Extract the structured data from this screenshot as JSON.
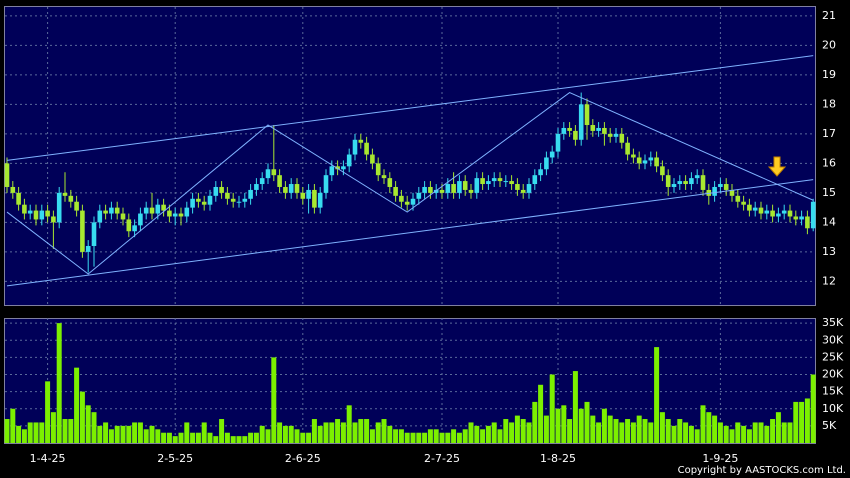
{
  "chart_data": [
    {
      "type": "candlestick",
      "open": [
        16.0,
        15.2,
        15.0,
        14.6,
        14.3,
        14.4,
        14.1,
        14.4,
        14.2,
        14.0,
        15.0,
        14.9,
        14.7,
        14.4,
        13.0,
        13.2,
        14.0,
        14.4,
        14.3,
        14.5,
        14.3,
        14.1,
        13.7,
        13.9,
        14.3,
        14.5,
        14.3,
        14.6,
        14.4,
        14.2,
        14.3,
        14.2,
        14.5,
        14.8,
        14.7,
        14.6,
        14.9,
        15.2,
        15.0,
        14.8,
        14.7,
        14.7,
        14.8,
        15.1,
        15.3,
        15.5,
        15.8,
        15.6,
        15.2,
        15.0,
        15.3,
        15.0,
        14.8,
        15.1,
        14.5,
        15.0,
        15.6,
        15.9,
        15.8,
        15.9,
        16.3,
        16.8,
        16.7,
        16.3,
        16.0,
        15.6,
        15.5,
        15.2,
        14.9,
        14.7,
        14.6,
        14.8,
        15.0,
        15.2,
        15.0,
        15.1,
        15.0,
        15.3,
        15.0,
        15.4,
        15.1,
        15.0,
        15.5,
        15.3,
        15.4,
        15.5,
        15.4,
        15.4,
        15.3,
        15.1,
        15.0,
        15.3,
        15.6,
        15.8,
        16.2,
        16.4,
        17.0,
        17.2,
        17.1,
        16.8,
        18.0,
        17.3,
        17.1,
        17.2,
        17.0,
        16.9,
        17.0,
        16.7,
        16.3,
        16.2,
        16.0,
        16.1,
        16.2,
        15.9,
        15.6,
        15.2,
        15.3,
        15.4,
        15.3,
        15.5,
        15.6,
        15.1,
        14.9,
        15.2,
        15.3,
        15.1,
        14.9,
        14.7,
        14.6,
        14.4,
        14.5,
        14.3,
        14.4,
        14.2,
        14.3,
        14.4,
        14.2,
        14.1,
        14.2,
        13.8
      ],
      "high": [
        16.2,
        15.4,
        15.2,
        14.8,
        14.6,
        14.6,
        14.6,
        14.6,
        14.4,
        15.2,
        15.7,
        15.1,
        14.9,
        14.6,
        13.4,
        14.2,
        14.6,
        14.6,
        14.7,
        14.7,
        14.5,
        14.3,
        14.1,
        14.5,
        14.7,
        15.0,
        14.8,
        14.8,
        14.6,
        14.5,
        14.5,
        14.7,
        15.0,
        15.0,
        14.9,
        15.1,
        15.4,
        15.4,
        15.2,
        15.0,
        14.9,
        15.0,
        15.3,
        15.5,
        15.7,
        16.0,
        17.3,
        15.8,
        15.4,
        15.5,
        15.5,
        15.2,
        15.3,
        15.3,
        15.2,
        15.8,
        16.1,
        16.1,
        16.1,
        16.5,
        17.0,
        17.0,
        16.9,
        16.5,
        16.2,
        15.8,
        15.7,
        15.4,
        15.1,
        14.9,
        15.0,
        15.2,
        15.4,
        15.4,
        15.3,
        15.3,
        15.5,
        15.7,
        15.6,
        15.6,
        15.3,
        15.7,
        15.7,
        15.6,
        15.7,
        15.7,
        15.6,
        15.6,
        15.5,
        15.3,
        15.5,
        15.8,
        16.0,
        16.4,
        16.6,
        17.2,
        17.4,
        17.4,
        17.3,
        18.4,
        18.2,
        17.5,
        17.4,
        17.4,
        17.2,
        17.2,
        17.2,
        16.9,
        16.5,
        16.4,
        16.3,
        16.4,
        16.4,
        16.1,
        15.8,
        15.5,
        15.6,
        15.6,
        15.7,
        15.8,
        15.8,
        15.3,
        15.4,
        15.5,
        15.5,
        15.3,
        15.1,
        14.9,
        14.8,
        14.7,
        14.7,
        14.6,
        14.6,
        14.5,
        14.6,
        14.6,
        14.4,
        14.4,
        14.4,
        14.8
      ],
      "low": [
        15.0,
        14.8,
        14.4,
        14.1,
        14.1,
        13.9,
        13.9,
        14.0,
        13.1,
        13.8,
        14.7,
        14.5,
        14.2,
        12.8,
        12.3,
        12.5,
        13.8,
        14.1,
        14.1,
        14.1,
        13.9,
        13.5,
        13.5,
        13.7,
        14.1,
        14.1,
        14.1,
        14.2,
        14.0,
        13.9,
        13.9,
        14.0,
        14.3,
        14.5,
        14.4,
        14.4,
        14.7,
        14.8,
        14.6,
        14.5,
        14.5,
        14.5,
        14.6,
        14.9,
        15.1,
        15.3,
        15.4,
        15.0,
        14.8,
        14.8,
        14.8,
        14.6,
        14.3,
        14.3,
        14.3,
        14.8,
        15.4,
        15.6,
        15.6,
        15.7,
        16.1,
        16.5,
        16.1,
        15.8,
        15.4,
        15.3,
        15.0,
        14.7,
        14.5,
        14.4,
        14.4,
        14.6,
        14.8,
        14.8,
        14.8,
        14.8,
        14.8,
        14.8,
        14.8,
        14.9,
        14.8,
        14.8,
        15.1,
        15.1,
        15.2,
        15.2,
        15.2,
        15.1,
        14.9,
        14.8,
        14.8,
        15.1,
        15.4,
        15.6,
        16.0,
        16.2,
        16.8,
        16.9,
        16.6,
        16.6,
        16.8,
        16.9,
        16.9,
        16.6,
        16.7,
        16.7,
        16.5,
        16.1,
        16.0,
        15.8,
        15.8,
        15.9,
        15.7,
        15.4,
        14.9,
        15.0,
        15.1,
        15.1,
        15.1,
        15.3,
        14.9,
        14.6,
        14.7,
        15.0,
        14.9,
        14.7,
        14.5,
        14.4,
        14.2,
        14.2,
        14.1,
        14.1,
        14.0,
        14.0,
        14.1,
        14.0,
        13.9,
        13.9,
        13.6,
        13.7
      ],
      "close": [
        15.2,
        15.0,
        14.6,
        14.3,
        14.4,
        14.1,
        14.4,
        14.2,
        14.0,
        15.0,
        14.9,
        14.7,
        14.4,
        13.0,
        13.2,
        14.0,
        14.4,
        14.3,
        14.5,
        14.3,
        14.1,
        13.7,
        13.9,
        14.3,
        14.5,
        14.3,
        14.6,
        14.4,
        14.2,
        14.3,
        14.2,
        14.5,
        14.8,
        14.7,
        14.6,
        14.9,
        15.2,
        15.0,
        14.8,
        14.7,
        14.7,
        14.8,
        15.1,
        15.3,
        15.5,
        15.8,
        15.6,
        15.2,
        15.0,
        15.3,
        15.0,
        14.8,
        15.1,
        14.5,
        15.0,
        15.6,
        15.9,
        15.8,
        15.9,
        16.3,
        16.8,
        16.7,
        16.3,
        16.0,
        15.6,
        15.5,
        15.2,
        14.9,
        14.7,
        14.6,
        14.8,
        15.0,
        15.2,
        15.0,
        15.1,
        15.0,
        15.3,
        15.0,
        15.4,
        15.1,
        15.0,
        15.5,
        15.3,
        15.4,
        15.5,
        15.4,
        15.4,
        15.3,
        15.1,
        15.0,
        15.3,
        15.6,
        15.8,
        16.2,
        16.4,
        17.0,
        17.2,
        17.1,
        16.8,
        18.0,
        17.3,
        17.1,
        17.2,
        17.0,
        16.9,
        17.0,
        16.7,
        16.3,
        16.2,
        16.0,
        16.1,
        16.2,
        15.9,
        15.6,
        15.2,
        15.3,
        15.4,
        15.3,
        15.5,
        15.6,
        15.1,
        14.9,
        15.2,
        15.3,
        15.1,
        14.9,
        14.7,
        14.6,
        14.4,
        14.5,
        14.3,
        14.4,
        14.2,
        14.3,
        14.4,
        14.2,
        14.1,
        14.2,
        13.8,
        14.7
      ],
      "up_color": "#38dcf0",
      "down_color": "#a8e830",
      "ylim": [
        11.2,
        21.3
      ],
      "yticks": [
        12,
        13,
        14,
        15,
        16,
        17,
        18,
        19,
        20,
        21
      ],
      "grid": true,
      "lines": [
        {
          "color": "#7fb2ff",
          "points": [
            [
              0,
              16.1
            ],
            [
              139,
              19.65
            ]
          ]
        },
        {
          "color": "#7fb2ff",
          "points": [
            [
              0,
              11.85
            ],
            [
              139,
              15.45
            ]
          ]
        },
        {
          "color": "#7fb2ff",
          "points": [
            [
              0,
              14.35
            ],
            [
              14,
              12.25
            ],
            [
              45,
              17.3
            ],
            [
              69,
              14.35
            ],
            [
              97,
              18.4
            ],
            [
              139,
              14.75
            ]
          ]
        }
      ]
    },
    {
      "type": "bar",
      "categories": [
        null,
        null,
        null,
        null,
        null,
        null,
        null,
        "1-4-25",
        null,
        null,
        null,
        null,
        null,
        null,
        null,
        null,
        null,
        null,
        null,
        null,
        null,
        null,
        null,
        null,
        null,
        null,
        null,
        null,
        null,
        "2-5-25",
        null,
        null,
        null,
        null,
        null,
        null,
        null,
        null,
        null,
        null,
        null,
        null,
        null,
        null,
        null,
        null,
        null,
        null,
        null,
        null,
        null,
        "2-6-25",
        null,
        null,
        null,
        null,
        null,
        null,
        null,
        null,
        null,
        null,
        null,
        null,
        null,
        null,
        null,
        null,
        null,
        null,
        null,
        null,
        null,
        null,
        null,
        "2-7-25",
        null,
        null,
        null,
        null,
        null,
        null,
        null,
        null,
        null,
        null,
        null,
        null,
        null,
        null,
        null,
        null,
        null,
        null,
        null,
        "1-8-25",
        null,
        null,
        null,
        null,
        null,
        null,
        null,
        null,
        null,
        null,
        null,
        null,
        null,
        null,
        null,
        null,
        null,
        null,
        null,
        null,
        null,
        null,
        null,
        null,
        null,
        null,
        null,
        "1-9-25",
        null,
        null,
        null,
        null,
        null,
        null,
        null,
        null,
        null,
        null,
        null,
        null,
        null,
        null,
        null,
        null
      ],
      "values": [
        7000,
        10000,
        5000,
        4000,
        6000,
        6000,
        6000,
        18000,
        9000,
        35000,
        7000,
        7000,
        22000,
        15000,
        11000,
        9000,
        5000,
        6000,
        4000,
        5000,
        5000,
        5000,
        6000,
        6000,
        4000,
        5000,
        4000,
        3000,
        3000,
        2000,
        3000,
        6000,
        3000,
        3000,
        6000,
        3000,
        2000,
        7000,
        3000,
        2000,
        2000,
        2000,
        3000,
        3000,
        5000,
        4000,
        25000,
        6000,
        5000,
        5000,
        4000,
        3000,
        3000,
        7000,
        5000,
        6000,
        6000,
        7000,
        6000,
        11000,
        6000,
        7000,
        7000,
        4000,
        6000,
        7000,
        5000,
        4000,
        4000,
        3000,
        3000,
        3000,
        3000,
        4000,
        4000,
        3000,
        3000,
        4000,
        3000,
        4000,
        6000,
        5000,
        4000,
        5000,
        6000,
        4000,
        7000,
        6000,
        8000,
        7000,
        6000,
        12000,
        17000,
        8000,
        20000,
        10000,
        11000,
        7000,
        21000,
        10000,
        12000,
        8000,
        6000,
        10000,
        8000,
        7000,
        6000,
        7000,
        6000,
        8000,
        7000,
        6000,
        28000,
        9000,
        7000,
        5000,
        7000,
        6000,
        5000,
        4000,
        11000,
        9000,
        8000,
        6000,
        5000,
        4000,
        6000,
        5000,
        4000,
        6000,
        6000,
        5000,
        7000,
        9000,
        6000,
        6000,
        12000,
        12000,
        13000,
        20000
      ],
      "color": "#7cf000",
      "ylim": [
        0,
        36500
      ],
      "yticks": [
        {
          "value": 5000,
          "label": "5K"
        },
        {
          "value": 10000,
          "label": "10K"
        },
        {
          "value": 15000,
          "label": "15K"
        },
        {
          "value": 20000,
          "label": "20K"
        },
        {
          "value": 25000,
          "label": "25K"
        },
        {
          "value": 30000,
          "label": "30K"
        },
        {
          "value": 35000,
          "label": "35K"
        }
      ],
      "grid": true
    }
  ],
  "footer": "Copyright by AASTOCKS.com Ltd."
}
